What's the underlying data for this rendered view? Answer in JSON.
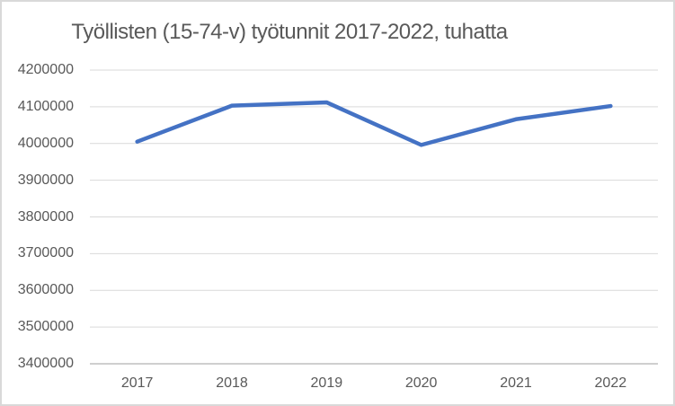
{
  "window": {
    "background": "#FFFFFF",
    "border_color": "#D9D9D9"
  },
  "chart_data": {
    "type": "line",
    "title": "Työllisten (15-74-v) työtunnit 2017-2022, tuhatta",
    "categories": [
      "2017",
      "2018",
      "2019",
      "2020",
      "2021",
      "2022"
    ],
    "values": [
      4005000,
      4103000,
      4112000,
      3996000,
      4066000,
      4102000
    ],
    "ylim": [
      3400000,
      4200000
    ],
    "ytick_step": 100000,
    "ytick_labels_top_to_bottom": [
      "4200000",
      "4100000",
      "4000000",
      "3900000",
      "3800000",
      "3700000",
      "3600000",
      "3500000",
      "3400000"
    ],
    "xlabel": "",
    "ylabel": "",
    "grid": true,
    "legend": false,
    "colors": {
      "line": "#4472C4",
      "gridline": "#D9D9D9",
      "axis_line": "#BFBFBF",
      "text": "#595959",
      "title_text": "#595959"
    }
  }
}
